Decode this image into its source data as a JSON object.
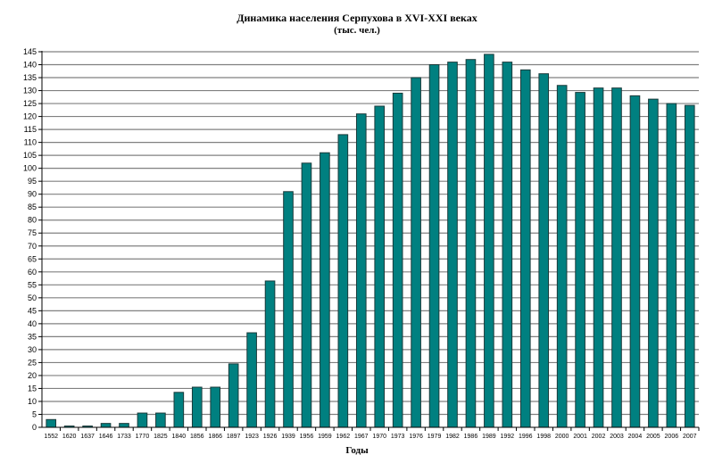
{
  "chart_data": {
    "type": "bar",
    "title": "Динамика населения Серпухова в XVI-XXI веках",
    "subtitle": "(тыс. чел.)",
    "xlabel": "Годы",
    "ylabel": "",
    "ylim": [
      0,
      145
    ],
    "ytick_step": 5,
    "grid": true,
    "legend": null,
    "categories": [
      "1552",
      "1620",
      "1637",
      "1646",
      "1733",
      "1770",
      "1825",
      "1840",
      "1856",
      "1866",
      "1897",
      "1923",
      "1926",
      "1939",
      "1956",
      "1959",
      "1962",
      "1967",
      "1970",
      "1973",
      "1976",
      "1979",
      "1982",
      "1986",
      "1989",
      "1992",
      "1996",
      "1998",
      "2000",
      "2001",
      "2002",
      "2003",
      "2004",
      "2005",
      "2006",
      "2007"
    ],
    "values": [
      3,
      0.5,
      0.5,
      1.5,
      1.5,
      5.5,
      5.5,
      13.5,
      15.5,
      15.5,
      24.5,
      36.5,
      56.5,
      91,
      102,
      106,
      113,
      121,
      124,
      129,
      135,
      140,
      141,
      142,
      144,
      141,
      138,
      136.5,
      132,
      129.3,
      131,
      131,
      128,
      126.7,
      125,
      124.3
    ],
    "bar_color": "#008080",
    "bar_edge_color": "#1a3a3a",
    "grid_color": "#808080"
  }
}
